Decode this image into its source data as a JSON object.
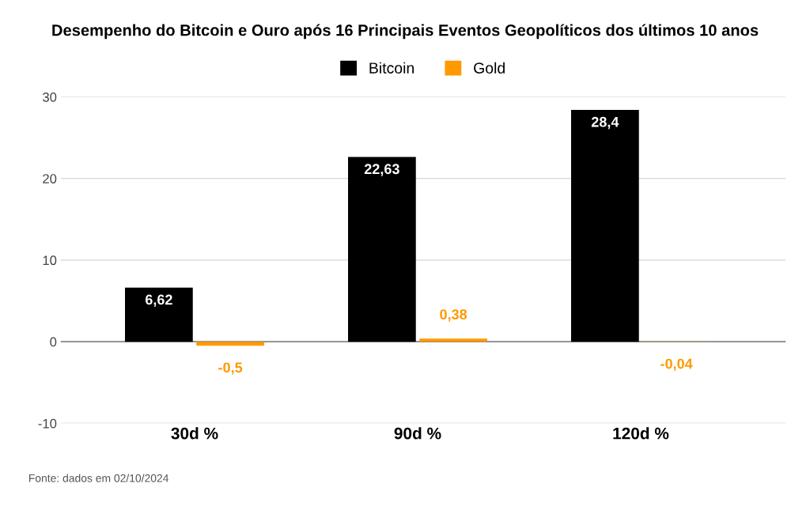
{
  "chart_data": {
    "type": "bar",
    "title": "Desempenho do Bitcoin e Ouro após 16 Principais Eventos Geopolíticos dos últimos 10 anos",
    "categories": [
      "30d %",
      "90d %",
      "120d %"
    ],
    "series": [
      {
        "name": "Bitcoin",
        "color": "#000000",
        "values": [
          6.62,
          22.63,
          28.4
        ],
        "value_labels": [
          "6,62",
          "22,63",
          "28,4"
        ]
      },
      {
        "name": "Gold",
        "color": "#ff9900",
        "values": [
          -0.5,
          0.38,
          -0.04
        ],
        "value_labels": [
          "-0,5",
          "0,38",
          "-0,04"
        ]
      }
    ],
    "ylim": [
      -10,
      30
    ],
    "yticks": [
      -10,
      0,
      10,
      20,
      30
    ],
    "grid": "y",
    "legend": "top",
    "annotations": [
      "Fonte: dados em 02/10/2024"
    ]
  }
}
